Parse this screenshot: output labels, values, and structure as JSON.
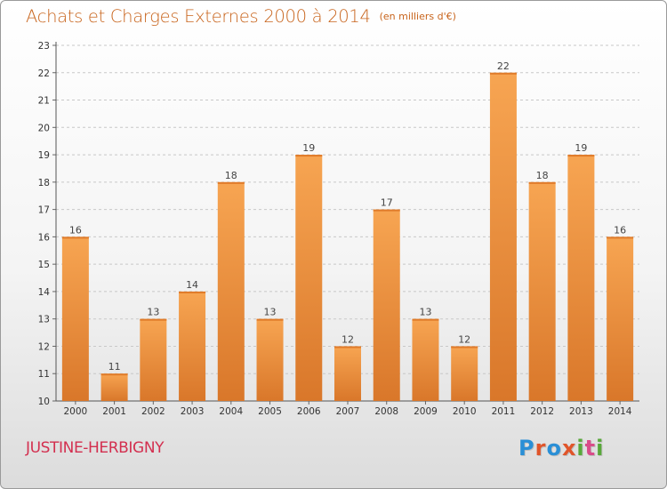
{
  "title": "Achats et Charges Externes 2000 à 2014",
  "unit": "(en milliers d'€)",
  "place": "JUSTINE-HERBIGNY",
  "logo": {
    "text": "Proxiti",
    "letters": [
      "P",
      "r",
      "o",
      "x",
      "i",
      "t",
      "i"
    ],
    "colors": [
      "#2a8fd6",
      "#e0552a",
      "#2a8fd6",
      "#e0552a",
      "#58a83a",
      "#d94c8a",
      "#58a83a"
    ]
  },
  "colors": {
    "title": "#c8641c",
    "bar_light": "#f7a552",
    "bar_dark": "#d9772a",
    "place": "#d32f4f"
  },
  "chart_data": {
    "type": "bar",
    "title": "Achats et Charges Externes 2000 à 2014",
    "subtitle": "(en milliers d'€)",
    "xlabel": "",
    "ylabel": "",
    "categories": [
      "2000",
      "2001",
      "2002",
      "2003",
      "2004",
      "2005",
      "2006",
      "2007",
      "2008",
      "2009",
      "2010",
      "2011",
      "2012",
      "2013",
      "2014"
    ],
    "values": [
      16,
      11,
      13,
      14,
      18,
      13,
      19,
      12,
      17,
      13,
      12,
      22,
      18,
      19,
      16
    ],
    "ylim": [
      10,
      23
    ],
    "yticks": [
      10,
      11,
      12,
      13,
      14,
      15,
      16,
      17,
      18,
      19,
      20,
      21,
      22,
      23
    ],
    "grid": true
  }
}
